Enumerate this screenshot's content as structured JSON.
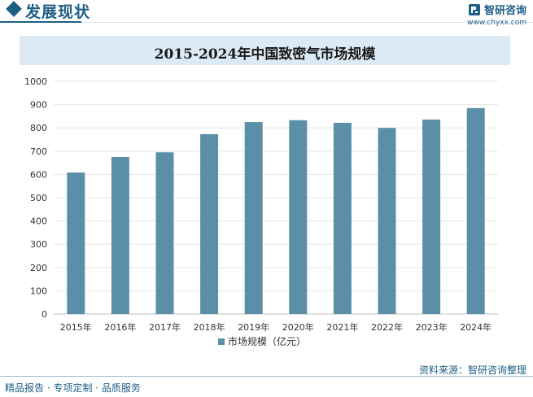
{
  "header": {
    "section_title": "发展现状",
    "brand_name": "智研咨询",
    "brand_url": "www.chyxx.com"
  },
  "chart_data": {
    "type": "bar",
    "title": "2015-2024年中国致密气市场规模",
    "categories": [
      "2015年",
      "2016年",
      "2017年",
      "2018年",
      "2019年",
      "2020年",
      "2021年",
      "2022年",
      "2023年",
      "2024年"
    ],
    "series": [
      {
        "name": "市场规模（亿元）",
        "values": [
          608,
          675,
          695,
          773,
          825,
          833,
          822,
          800,
          836,
          885
        ]
      }
    ],
    "ylim": [
      0,
      1000
    ],
    "yticks": [
      0,
      100,
      200,
      300,
      400,
      500,
      600,
      700,
      800,
      900,
      1000
    ],
    "grid": true,
    "legend": "bottom",
    "bar_color": "#5b8fa8"
  },
  "footer": {
    "source": "资料来源：智研咨询整理",
    "services": "精品报告 · 专项定制 · 品质服务"
  }
}
